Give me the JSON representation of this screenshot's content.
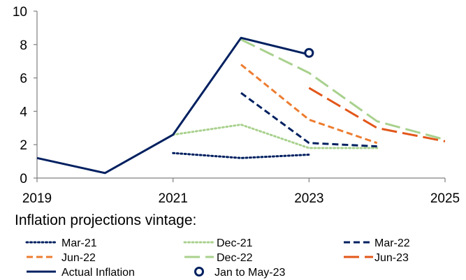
{
  "chart_data": {
    "type": "line",
    "title": "",
    "xlabel": "",
    "ylabel": "",
    "xlim": [
      2019,
      2025
    ],
    "ylim": [
      0,
      10
    ],
    "x_ticks": [
      "2019",
      "2021",
      "2023",
      "2025"
    ],
    "y_ticks": [
      "0",
      "2",
      "4",
      "6",
      "8",
      "10"
    ],
    "grid": false,
    "legend_title": "Inflation projections vintage:",
    "legend_position": "bottom",
    "series": [
      {
        "name": "Mar-21",
        "color": "#002060",
        "dash": "dotted",
        "points": [
          [
            2021,
            1.5
          ],
          [
            2022,
            1.2
          ],
          [
            2023,
            1.4
          ]
        ]
      },
      {
        "name": "Dec-21",
        "color": "#a9d18e",
        "dash": "dotted",
        "points": [
          [
            2021,
            2.6
          ],
          [
            2022,
            3.2
          ],
          [
            2023,
            1.8
          ],
          [
            2024,
            1.8
          ]
        ]
      },
      {
        "name": "Mar-22",
        "color": "#002060",
        "dash": "dashed",
        "points": [
          [
            2022,
            5.1
          ],
          [
            2023,
            2.1
          ],
          [
            2024,
            1.9
          ]
        ]
      },
      {
        "name": "Jun-22",
        "color": "#ed7d31",
        "dash": "dashed",
        "points": [
          [
            2022,
            6.8
          ],
          [
            2023,
            3.5
          ],
          [
            2024,
            2.1
          ]
        ]
      },
      {
        "name": "Dec-22",
        "color": "#a9d18e",
        "dash": "long-dash",
        "points": [
          [
            2022,
            8.3
          ],
          [
            2023,
            6.3
          ],
          [
            2024,
            3.4
          ],
          [
            2025,
            2.3
          ]
        ]
      },
      {
        "name": "Jun-23",
        "color": "#e2571a",
        "dash": "long-dash",
        "points": [
          [
            2023,
            5.4
          ],
          [
            2024,
            3.0
          ],
          [
            2025,
            2.2
          ]
        ]
      },
      {
        "name": "Actual Inflation",
        "color": "#002060",
        "dash": "solid",
        "points": [
          [
            2019,
            1.2
          ],
          [
            2020,
            0.3
          ],
          [
            2021,
            2.6
          ],
          [
            2022,
            8.4
          ],
          [
            2023,
            7.4
          ]
        ]
      }
    ],
    "markers": [
      {
        "name": "Jan to May-23",
        "color": "#002060",
        "shape": "open-circle",
        "points": [
          [
            2023,
            7.5
          ]
        ]
      }
    ]
  }
}
